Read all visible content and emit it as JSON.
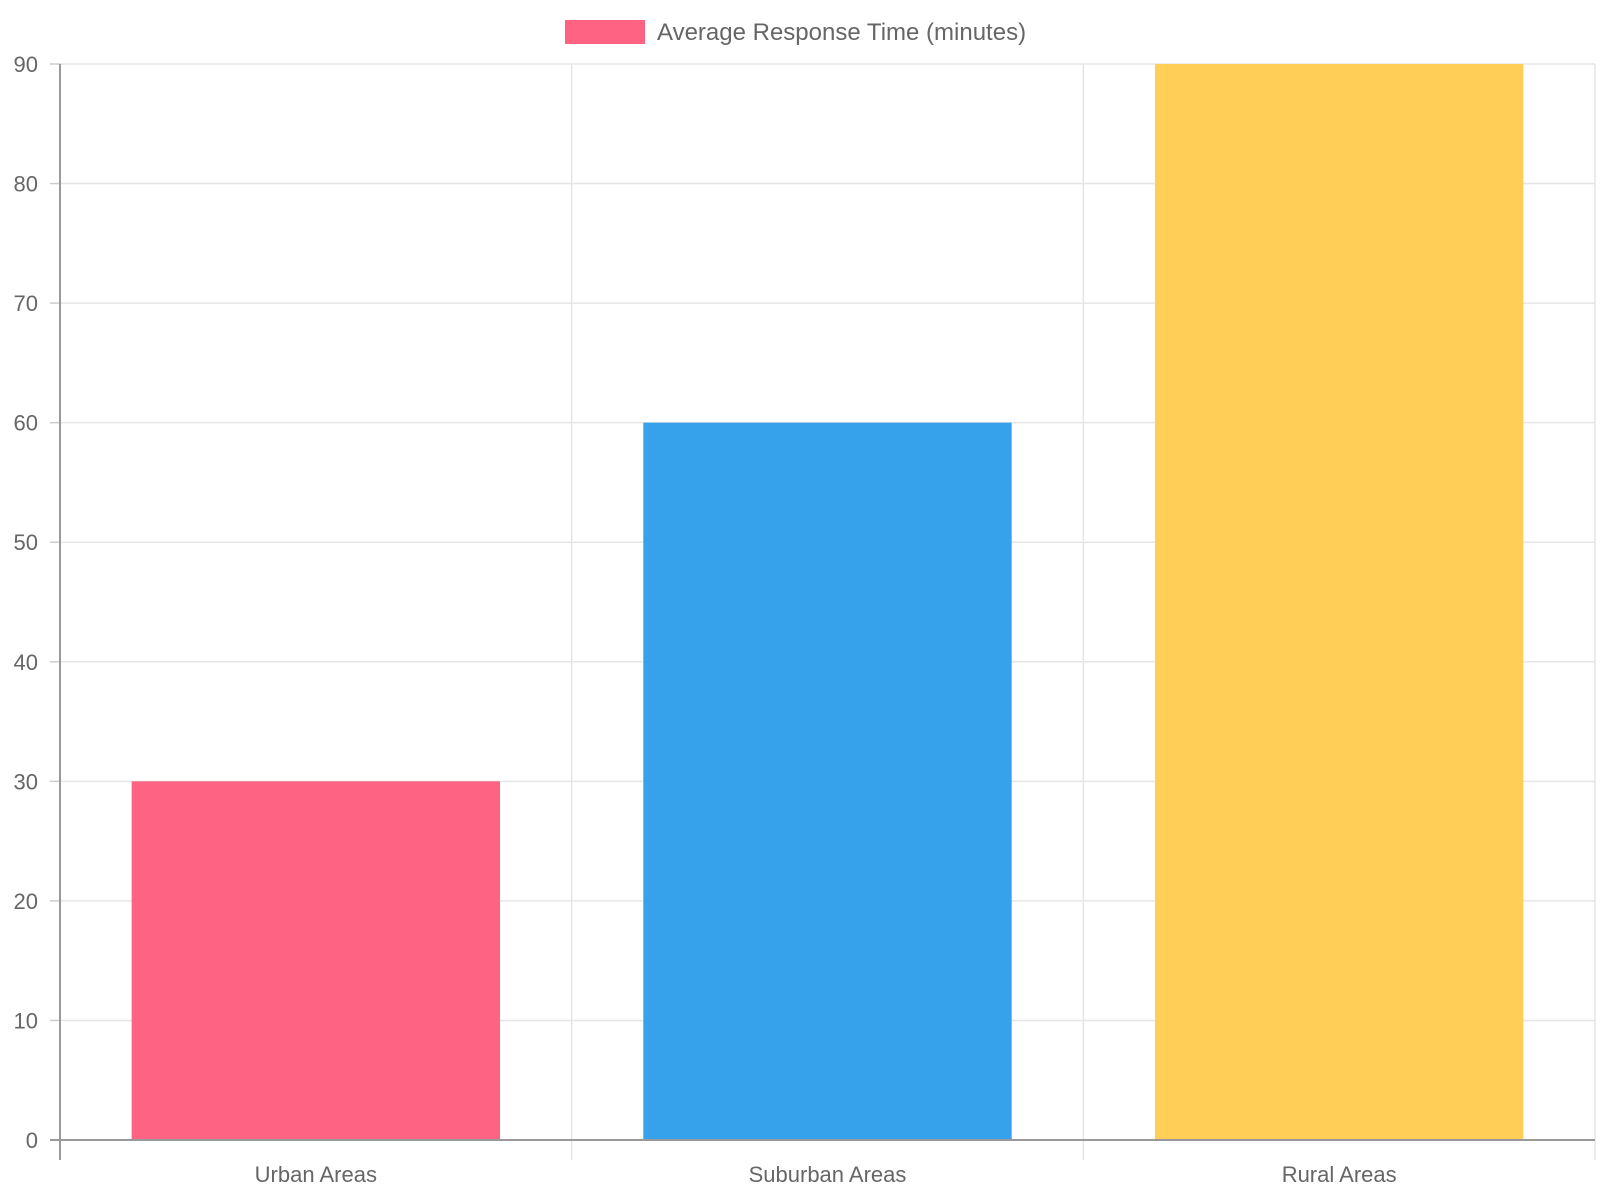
{
  "chart_data": {
    "type": "bar",
    "categories": [
      "Urban Areas",
      "Suburban Areas",
      "Rural Areas"
    ],
    "series": [
      {
        "name": "Average Response Time (minutes)",
        "values": [
          30,
          60,
          90
        ]
      }
    ],
    "bar_colors": [
      "#ff6384",
      "#36a2eb",
      "#ffce56"
    ],
    "legend_color": "#ff6384",
    "title": "",
    "xlabel": "",
    "ylabel": "",
    "ylim": [
      0,
      90
    ],
    "yticks": [
      0,
      10,
      20,
      30,
      40,
      50,
      60,
      70,
      80,
      90
    ],
    "grid": true,
    "legend_position": "top"
  }
}
